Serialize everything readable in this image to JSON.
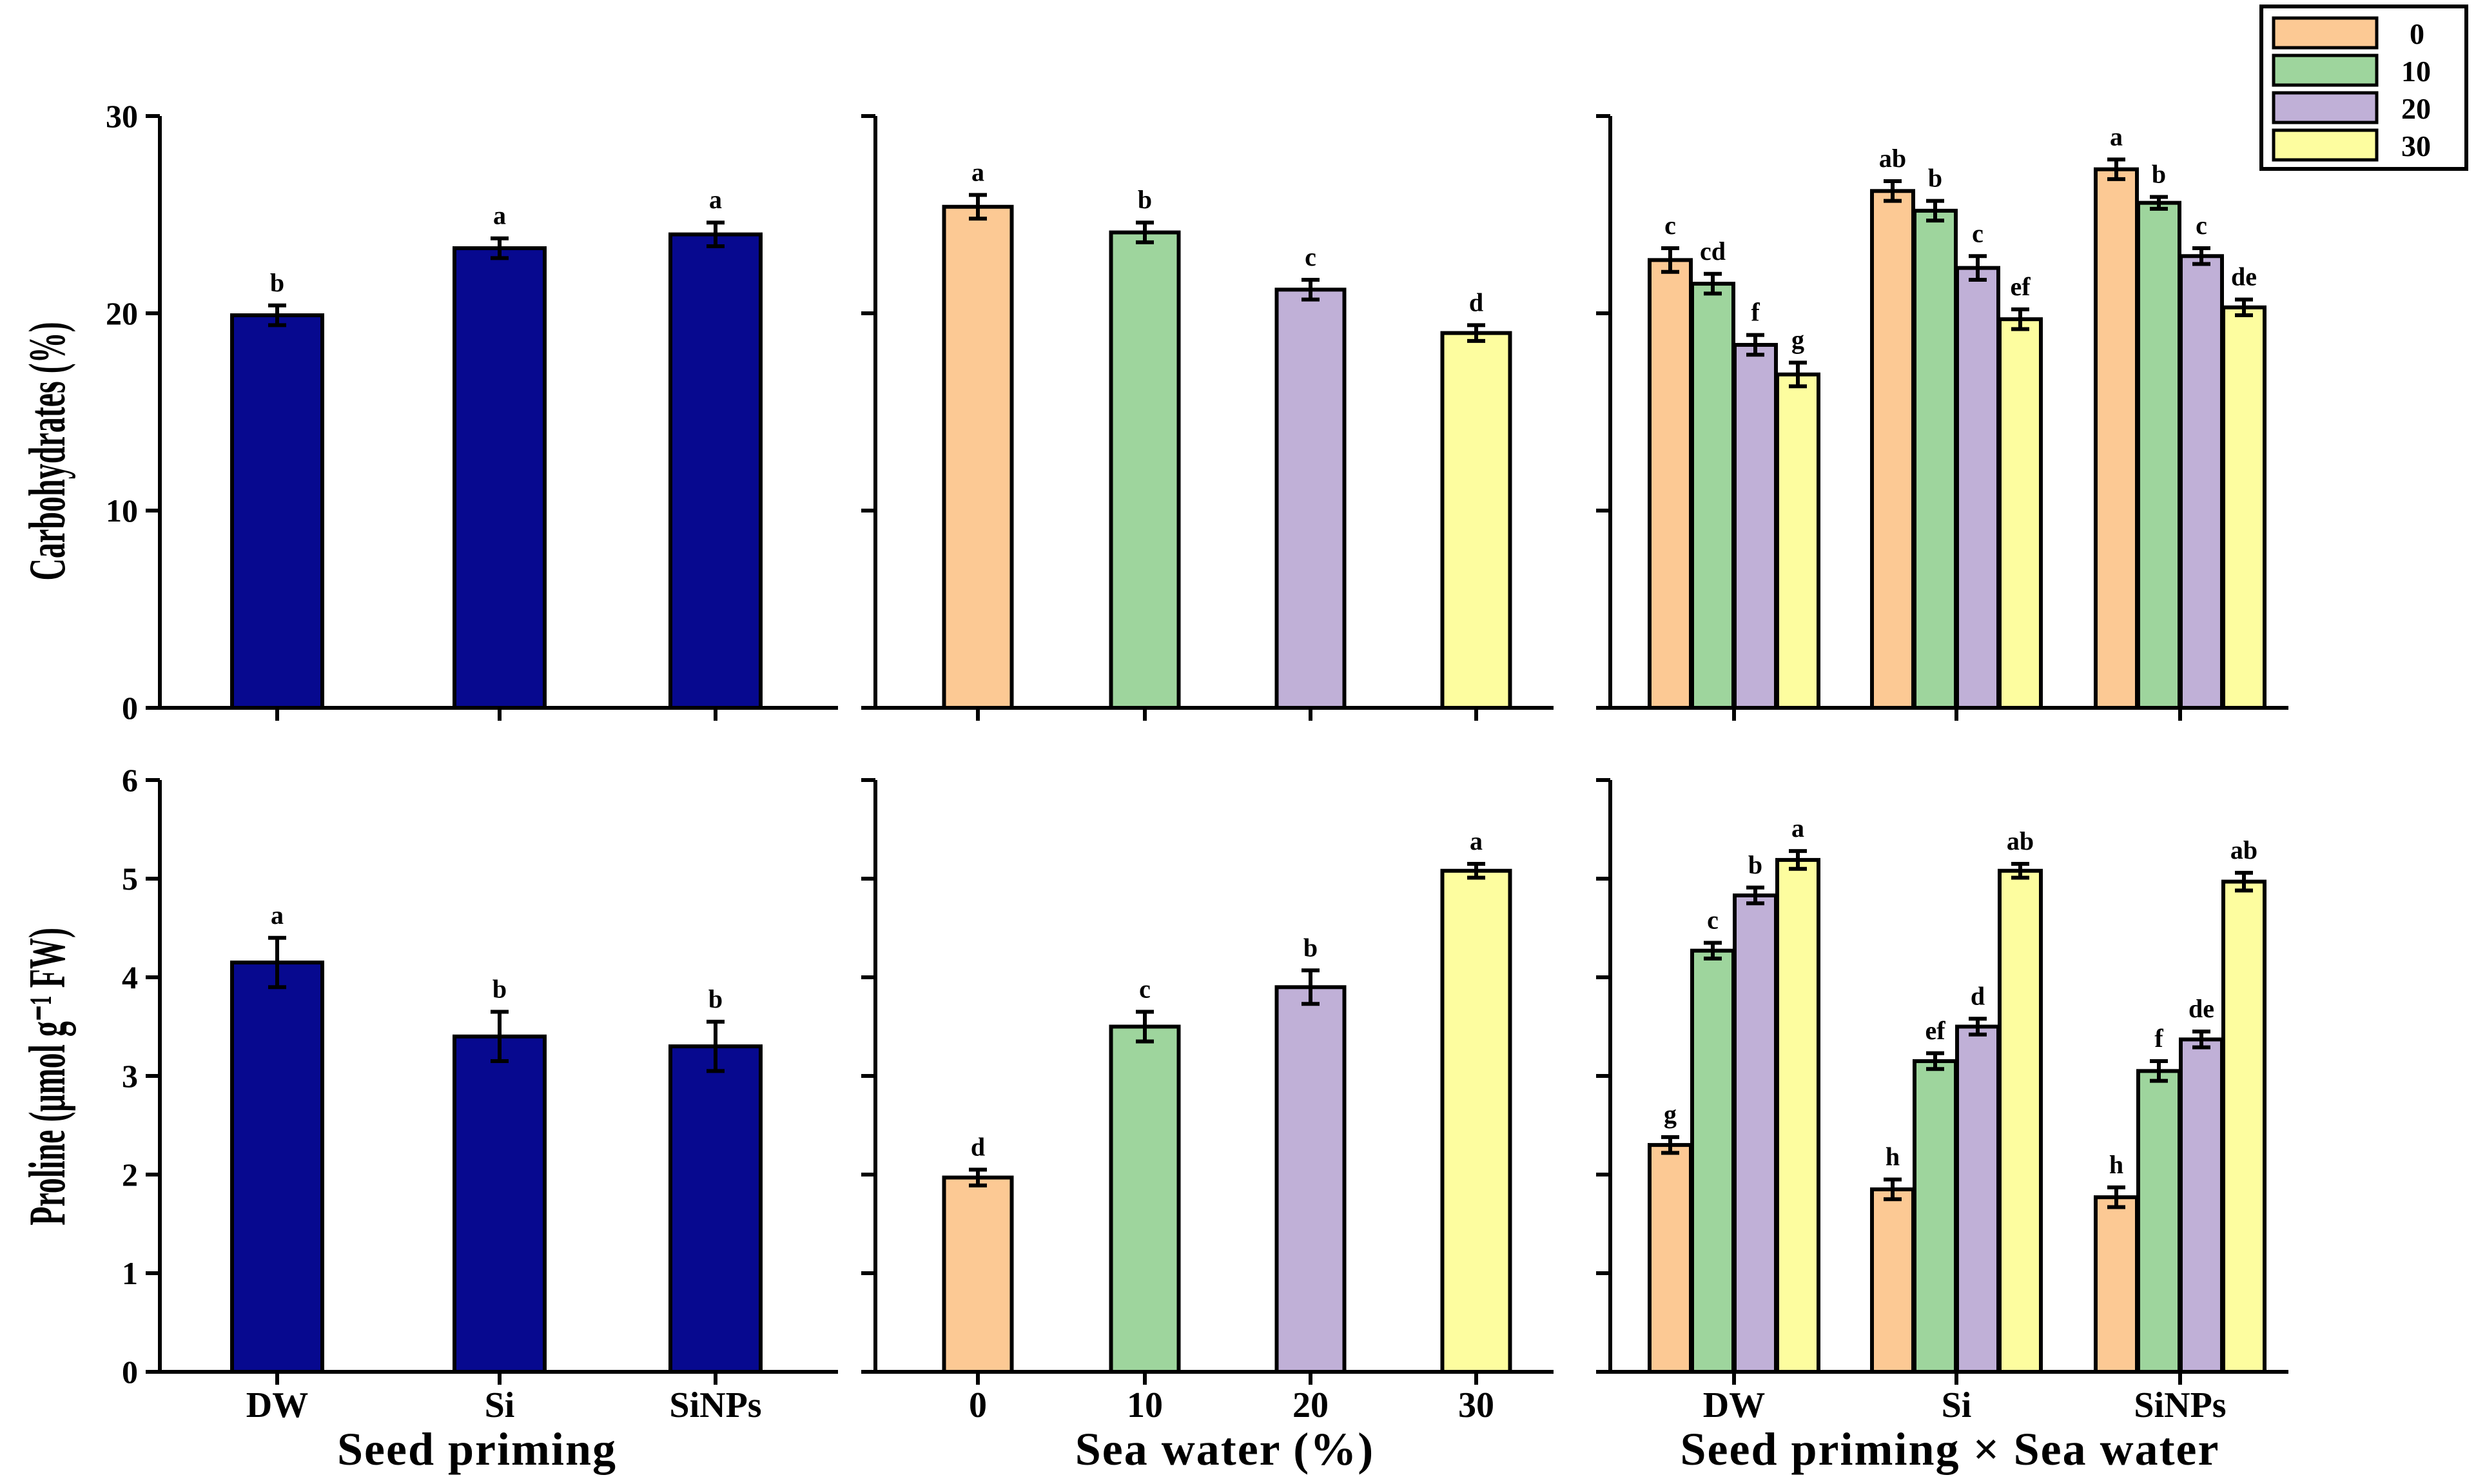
{
  "colors": {
    "dw_si_sinps_bar": "#07098f",
    "sw0": "#fcc994",
    "sw10": "#9ed59d",
    "sw20": "#c0b0d7",
    "sw30": "#fdfd9f",
    "edge": "#000000"
  },
  "legend": {
    "entries": [
      "0",
      "10",
      "20",
      "30"
    ]
  },
  "x_titles": [
    "Seed priming",
    "Sea water (%)",
    "Seed priming × Sea water"
  ],
  "chart_data": [
    {
      "type": "bar",
      "panel": "top-left",
      "ylabel": "Carbohydrates (%)",
      "xlabel": "Seed priming",
      "ylim": [
        0,
        30
      ],
      "yticks": [
        0,
        10,
        20,
        30
      ],
      "categories": [
        "DW",
        "Si",
        "SiNPs"
      ],
      "values": [
        19.9,
        23.3,
        24.0
      ],
      "errors": [
        0.5,
        0.5,
        0.6
      ],
      "letters": [
        "b",
        "a",
        "a"
      ]
    },
    {
      "type": "bar",
      "panel": "top-middle",
      "xlabel": "Sea water (%)",
      "ylim": [
        0,
        30
      ],
      "yticks": [
        0,
        10,
        20,
        30
      ],
      "categories": [
        "0",
        "10",
        "20",
        "30"
      ],
      "values": [
        25.4,
        24.1,
        21.2,
        19.0
      ],
      "errors": [
        0.6,
        0.5,
        0.5,
        0.4
      ],
      "letters": [
        "a",
        "b",
        "c",
        "d"
      ]
    },
    {
      "type": "bar",
      "panel": "top-right",
      "xlabel": "Seed priming × Sea water",
      "ylim": [
        0,
        30
      ],
      "yticks": [
        0,
        10,
        20,
        30
      ],
      "categories": [
        "DW",
        "Si",
        "SiNPs"
      ],
      "series": [
        {
          "name": "0",
          "values": [
            22.7,
            26.2,
            27.3
          ],
          "errors": [
            0.6,
            0.5,
            0.5
          ],
          "letters": [
            "c",
            "ab",
            "a"
          ]
        },
        {
          "name": "10",
          "values": [
            21.5,
            25.2,
            25.6
          ],
          "errors": [
            0.5,
            0.5,
            0.3
          ],
          "letters": [
            "cd",
            "b",
            "b"
          ]
        },
        {
          "name": "20",
          "values": [
            18.4,
            22.3,
            22.9
          ],
          "errors": [
            0.5,
            0.6,
            0.4
          ],
          "letters": [
            "f",
            "c",
            "c"
          ]
        },
        {
          "name": "30",
          "values": [
            16.9,
            19.7,
            20.3
          ],
          "errors": [
            0.6,
            0.5,
            0.4
          ],
          "letters": [
            "g",
            "ef",
            "de"
          ]
        }
      ]
    },
    {
      "type": "bar",
      "panel": "bottom-left",
      "ylabel": "Proline (μmol g⁻¹ FW)",
      "xlabel": "Seed priming",
      "ylim": [
        0,
        6
      ],
      "yticks": [
        0,
        1,
        2,
        3,
        4,
        5,
        6
      ],
      "categories": [
        "DW",
        "Si",
        "SiNPs"
      ],
      "values": [
        4.15,
        3.4,
        3.3
      ],
      "errors": [
        0.25,
        0.25,
        0.25
      ],
      "letters": [
        "a",
        "b",
        "b"
      ]
    },
    {
      "type": "bar",
      "panel": "bottom-middle",
      "xlabel": "Sea water (%)",
      "ylim": [
        0,
        6
      ],
      "yticks": [
        0,
        1,
        2,
        3,
        4,
        5,
        6
      ],
      "categories": [
        "0",
        "10",
        "20",
        "30"
      ],
      "values": [
        1.97,
        3.5,
        3.9,
        5.08
      ],
      "errors": [
        0.08,
        0.15,
        0.17,
        0.07
      ],
      "letters": [
        "d",
        "c",
        "b",
        "a"
      ]
    },
    {
      "type": "bar",
      "panel": "bottom-right",
      "xlabel": "Seed priming × Sea water",
      "ylim": [
        0,
        6
      ],
      "yticks": [
        0,
        1,
        2,
        3,
        4,
        5,
        6
      ],
      "categories": [
        "DW",
        "Si",
        "SiNPs"
      ],
      "series": [
        {
          "name": "0",
          "values": [
            2.3,
            1.85,
            1.77
          ],
          "errors": [
            0.08,
            0.1,
            0.1
          ],
          "letters": [
            "g",
            "h",
            "h"
          ]
        },
        {
          "name": "10",
          "values": [
            4.27,
            3.15,
            3.05
          ],
          "errors": [
            0.08,
            0.08,
            0.1
          ],
          "letters": [
            "c",
            "ef",
            "f"
          ]
        },
        {
          "name": "20",
          "values": [
            4.83,
            3.5,
            3.37
          ],
          "errors": [
            0.08,
            0.08,
            0.08
          ],
          "letters": [
            "b",
            "d",
            "de"
          ]
        },
        {
          "name": "30",
          "values": [
            5.19,
            5.08,
            4.97
          ],
          "errors": [
            0.09,
            0.07,
            0.09
          ],
          "letters": [
            "a",
            "ab",
            "ab"
          ]
        }
      ]
    }
  ]
}
